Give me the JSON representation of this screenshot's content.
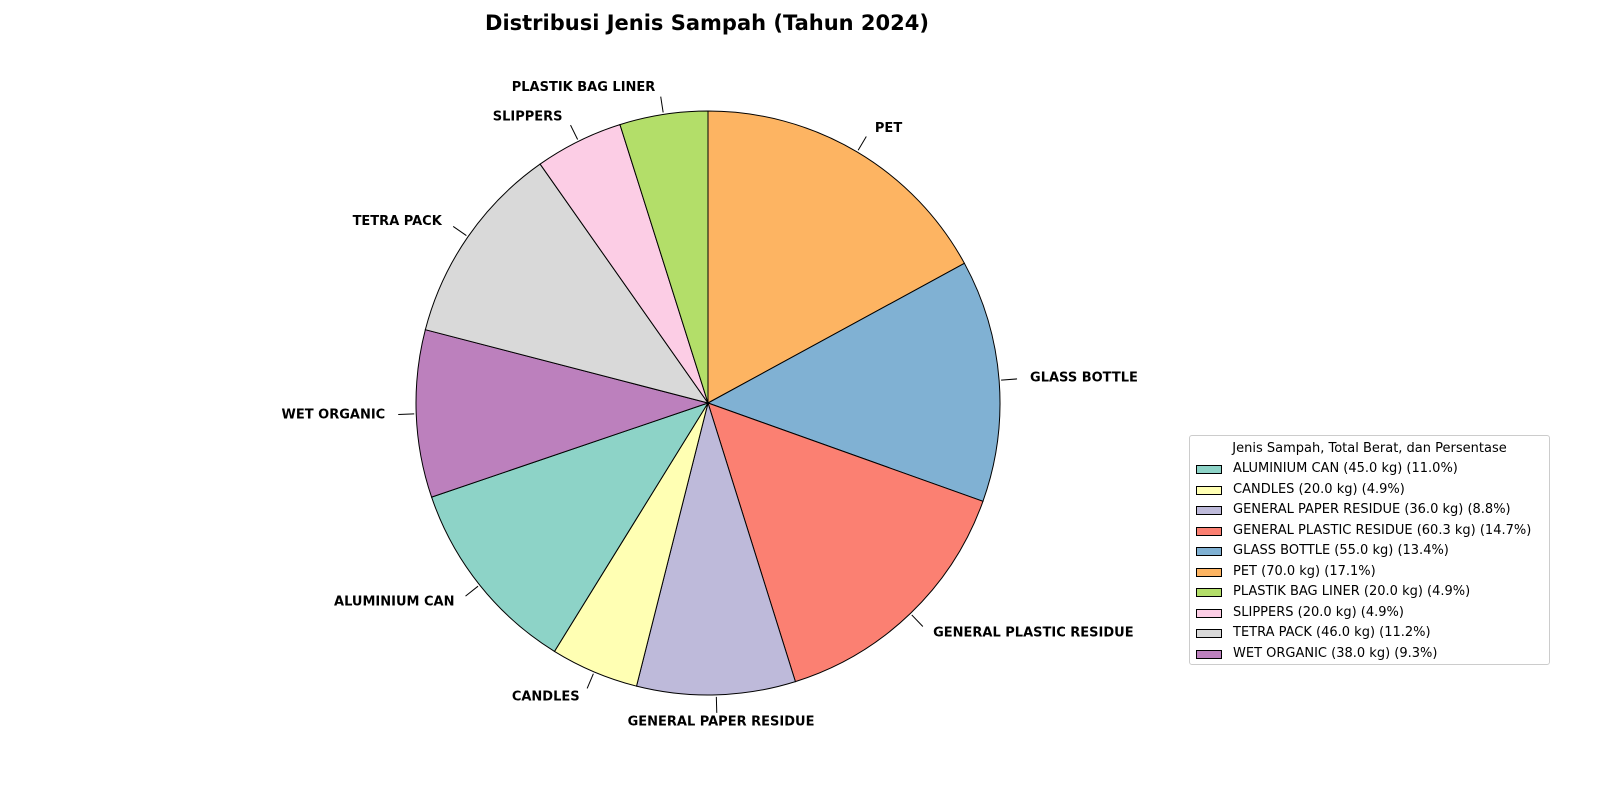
{
  "chart_data": {
    "type": "pie",
    "title": "Distribusi Jenis Sampah (Tahun 2024)",
    "start_angle_deg": 90,
    "direction": "clockwise",
    "categories": [
      "PET",
      "GLASS BOTTLE",
      "GENERAL PLASTIC RESIDUE",
      "GENERAL PAPER RESIDUE",
      "CANDLES",
      "ALUMINIUM CAN",
      "WET ORGANIC",
      "TETRA PACK",
      "SLIPPERS",
      "PLASTIK BAG LINER"
    ],
    "values": [
      70.0,
      55.0,
      60.3,
      36.0,
      20.0,
      45.0,
      38.0,
      46.0,
      20.0,
      20.0
    ],
    "colors": [
      "#fdb462",
      "#80b1d3",
      "#fb8072",
      "#bebada",
      "#ffffb3",
      "#8dd3c7",
      "#bc80bd",
      "#d9d9d9",
      "#fccde5",
      "#b3de69"
    ],
    "legend": {
      "title": "Jenis Sampah, Total Berat, dan Persentase",
      "placement": "center-right",
      "entries": [
        {
          "label": "ALUMINIUM CAN (45.0 kg) (11.0%)",
          "color": "#8dd3c7"
        },
        {
          "label": "CANDLES (20.0 kg) (4.9%)",
          "color": "#ffffb3"
        },
        {
          "label": "GENERAL PAPER RESIDUE (36.0 kg) (8.8%)",
          "color": "#bebada"
        },
        {
          "label": "GENERAL PLASTIC RESIDUE (60.3 kg) (14.7%)",
          "color": "#fb8072"
        },
        {
          "label": "GLASS BOTTLE (55.0 kg) (13.4%)",
          "color": "#80b1d3"
        },
        {
          "label": "PET (70.0 kg) (17.1%)",
          "color": "#fdb462"
        },
        {
          "label": "PLASTIK BAG LINER (20.0 kg) (4.9%)",
          "color": "#b3de69"
        },
        {
          "label": "SLIPPERS (20.0 kg) (4.9%)",
          "color": "#fccde5"
        },
        {
          "label": "TETRA PACK (46.0 kg) (11.2%)",
          "color": "#d9d9d9"
        },
        {
          "label": "WET ORGANIC (38.0 kg) (9.3%)",
          "color": "#bc80bd"
        }
      ]
    }
  }
}
